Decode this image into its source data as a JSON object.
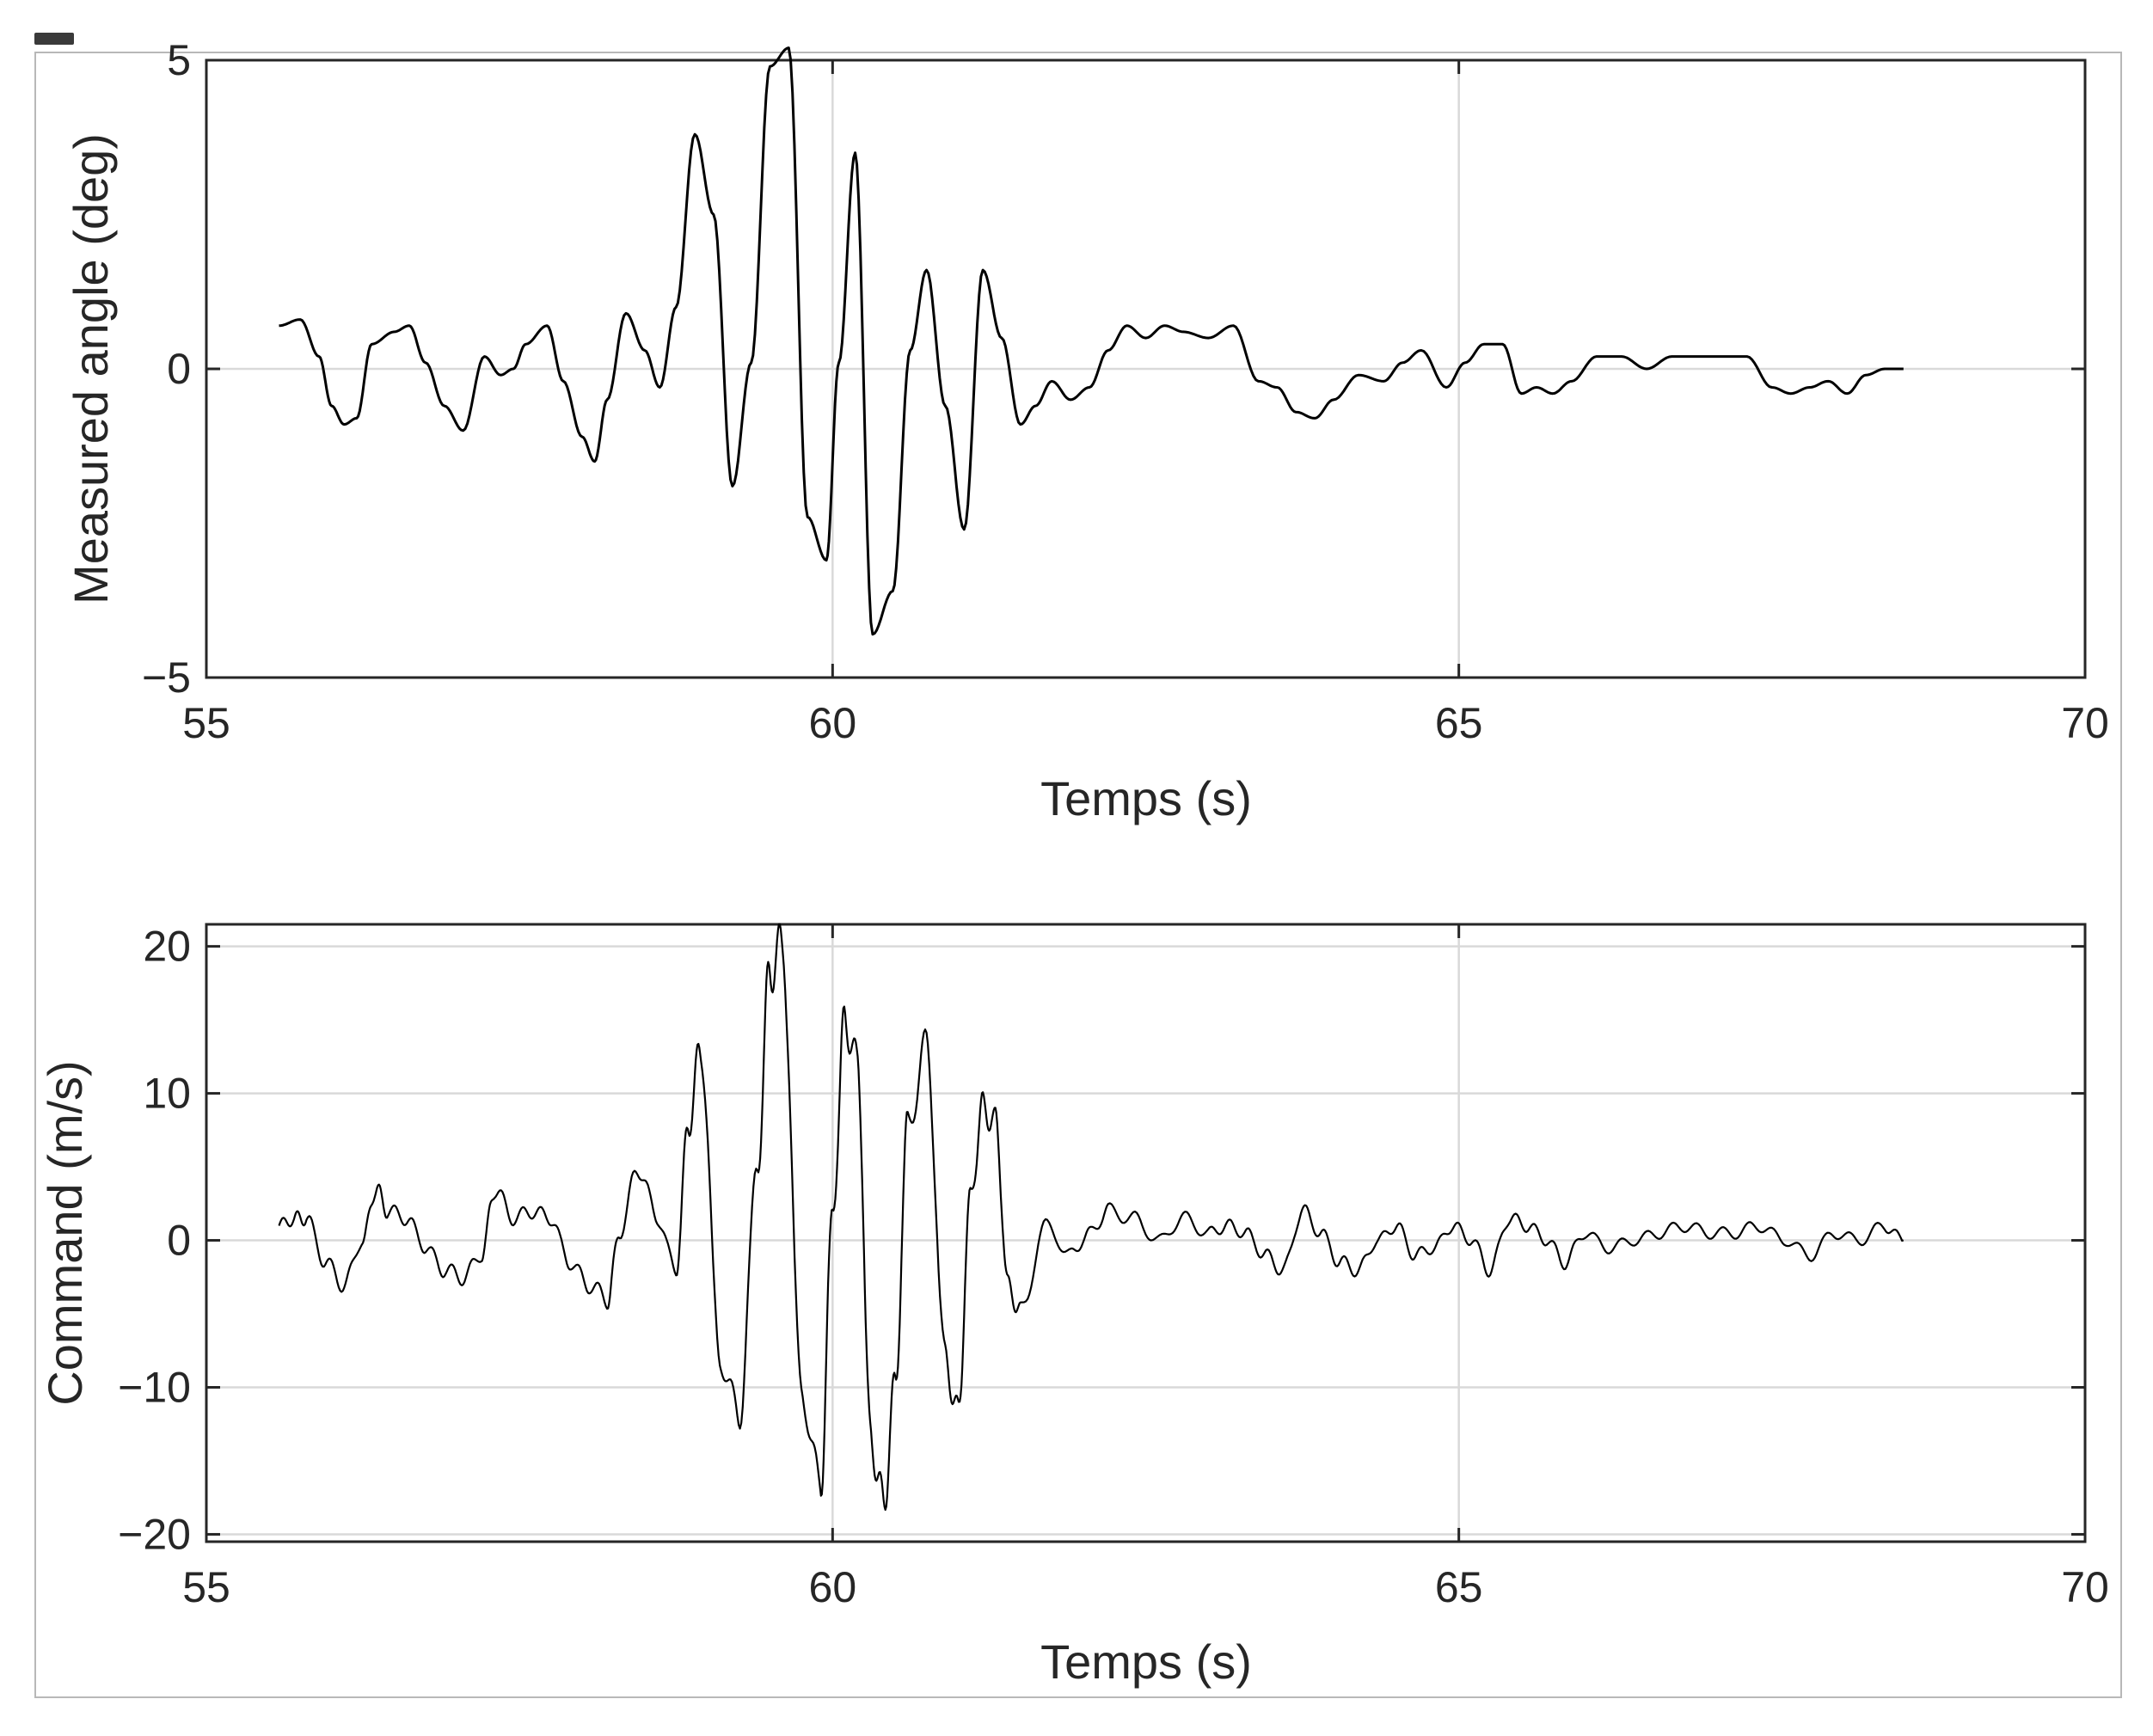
{
  "window": {
    "badge_icon": "window-badge-icon"
  },
  "chart_data": [
    {
      "type": "line",
      "xlabel": "Temps (s)",
      "ylabel": "Measured angle (deg)",
      "xlim": [
        55,
        70
      ],
      "ylim": [
        -5,
        5
      ],
      "xticks": [
        55,
        60,
        65,
        70
      ],
      "yticks": [
        -5,
        0,
        5
      ],
      "xtick_labels": [
        "55",
        "60",
        "65",
        "70"
      ],
      "ytick_labels": [
        "−5",
        "0",
        "5"
      ],
      "grid": true,
      "series": [
        {
          "color": "#000000",
          "x": [
            55.58,
            55.75,
            55.9,
            56.0,
            56.1,
            56.2,
            56.32,
            56.5,
            56.62,
            56.75,
            56.9,
            57.05,
            57.22,
            57.35,
            57.45,
            57.55,
            57.72,
            57.85,
            58.0,
            58.1,
            58.2,
            58.35,
            58.5,
            58.62,
            58.75,
            58.9,
            59.05,
            59.2,
            59.35,
            59.5,
            59.65,
            59.8,
            59.95,
            60.05,
            60.18,
            60.32,
            60.48,
            60.62,
            60.75,
            60.9,
            61.05,
            61.2,
            61.35,
            61.5,
            61.62,
            61.75,
            61.9,
            62.05,
            62.2,
            62.35,
            62.5,
            62.65,
            62.8,
            63.0,
            63.2,
            63.4,
            63.55,
            63.7,
            63.85,
            64.0,
            64.2,
            64.4,
            64.55,
            64.7,
            64.9,
            65.05,
            65.2,
            65.35,
            65.5,
            65.62,
            65.75,
            65.9,
            66.1,
            66.3,
            66.5,
            66.7,
            66.9,
            67.1,
            67.3,
            67.5,
            67.65,
            67.8,
            67.95,
            68.1,
            68.25,
            68.4,
            68.55
          ],
          "y": [
            0.7,
            0.8,
            0.2,
            -0.6,
            -0.9,
            -0.8,
            0.4,
            0.6,
            0.7,
            0.1,
            -0.6,
            -1.0,
            0.2,
            -0.1,
            0.0,
            0.4,
            0.7,
            -0.2,
            -1.1,
            -1.5,
            -0.5,
            0.9,
            0.3,
            -0.3,
            1.0,
            3.8,
            2.5,
            -1.9,
            0.1,
            4.9,
            5.2,
            -2.4,
            -3.1,
            0.1,
            3.5,
            -4.3,
            -3.6,
            0.3,
            1.6,
            -0.6,
            -2.6,
            1.6,
            0.5,
            -0.9,
            -0.6,
            -0.2,
            -0.5,
            -0.3,
            0.3,
            0.7,
            0.5,
            0.7,
            0.6,
            0.5,
            0.7,
            -0.2,
            -0.3,
            -0.7,
            -0.8,
            -0.5,
            -0.1,
            -0.2,
            0.1,
            0.3,
            -0.3,
            0.1,
            0.4,
            0.4,
            -0.4,
            -0.3,
            -0.4,
            -0.2,
            0.2,
            0.2,
            0.0,
            0.2,
            0.2,
            0.2,
            0.2,
            -0.3,
            -0.4,
            -0.3,
            -0.2,
            -0.4,
            -0.1,
            0.0,
            0.0
          ]
        }
      ]
    },
    {
      "type": "line",
      "xlabel": "Temps (s)",
      "ylabel": "Command (m/s)",
      "xlim": [
        55,
        70
      ],
      "ylim": [
        -20.5,
        21.5
      ],
      "xticks": [
        55,
        60,
        65,
        70
      ],
      "yticks": [
        -20,
        -10,
        0,
        10,
        20
      ],
      "xtick_labels": [
        "55",
        "60",
        "65",
        "70"
      ],
      "ytick_labels": [
        "−20",
        "−10",
        "0",
        "10",
        "20"
      ],
      "grid": true,
      "series": [
        {
          "color": "#000000",
          "x": [
            55.58,
            55.7,
            55.8,
            55.95,
            56.1,
            56.25,
            56.35,
            56.45,
            56.6,
            56.75,
            56.9,
            57.05,
            57.2,
            57.3,
            57.45,
            57.6,
            57.75,
            57.9,
            58.05,
            58.2,
            58.3,
            58.45,
            58.6,
            58.75,
            58.85,
            58.95,
            59.1,
            59.25,
            59.4,
            59.5,
            59.6,
            59.75,
            59.9,
            60.0,
            60.1,
            60.2,
            60.3,
            60.4,
            60.5,
            60.6,
            60.75,
            60.9,
            61.0,
            61.1,
            61.2,
            61.3,
            61.4,
            61.5,
            61.7,
            61.9,
            62.05,
            62.2,
            62.4,
            62.6,
            62.8,
            63.0,
            63.15,
            63.3,
            63.45,
            63.6,
            63.75,
            63.9,
            64.05,
            64.2,
            64.35,
            64.5,
            64.65,
            64.8,
            64.95,
            65.1,
            65.25,
            65.4,
            65.55,
            65.7,
            65.85,
            66.0,
            66.2,
            66.4,
            66.6,
            66.8,
            67.0,
            67.2,
            67.4,
            67.6,
            67.8,
            68.0,
            68.2,
            68.4,
            68.55
          ],
          "y": [
            1.0,
            1.5,
            1.5,
            -1.5,
            -3.0,
            0.0,
            3.5,
            2.0,
            1.5,
            -0.5,
            -2.0,
            -2.5,
            -1.0,
            3.5,
            1.5,
            2.0,
            1.5,
            -1.5,
            -3.0,
            -4.0,
            0.5,
            5.0,
            1.5,
            -2.0,
            8.0,
            13.0,
            -8.0,
            -12.0,
            5.0,
            18.5,
            20.0,
            -10.0,
            -17.0,
            2.0,
            15.0,
            12.0,
            -13.0,
            -18.0,
            -10.0,
            8.0,
            13.0,
            -8.0,
            -12.0,
            3.0,
            9.0,
            8.0,
            -3.0,
            -5.0,
            1.0,
            -1.0,
            0.5,
            2.0,
            1.5,
            0.0,
            1.5,
            0.5,
            1.0,
            0.5,
            -1.0,
            -2.0,
            2.0,
            0.5,
            -1.5,
            -2.0,
            0.0,
            1.0,
            -1.0,
            -0.5,
            1.0,
            0.0,
            -2.0,
            1.5,
            1.0,
            0.0,
            -1.5,
            0.5,
            -0.5,
            0.0,
            0.5,
            1.0,
            0.5,
            0.5,
            1.0,
            0.0,
            -1.0,
            0.5,
            0.0,
            1.0,
            0.0
          ]
        }
      ]
    }
  ]
}
